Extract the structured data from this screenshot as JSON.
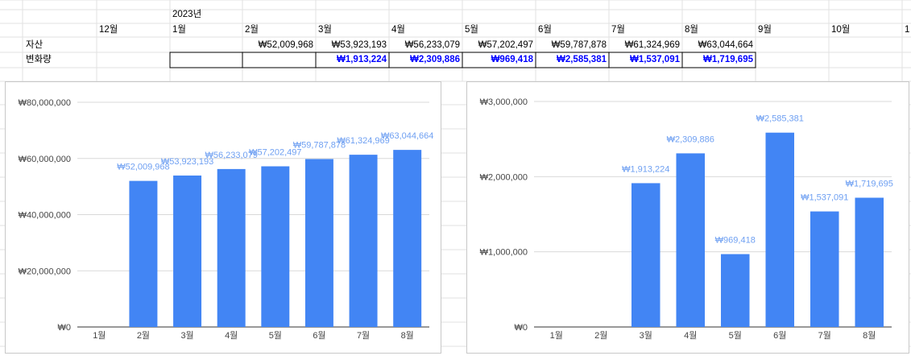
{
  "sheet": {
    "year_label": "2023년",
    "month_headers": [
      "12월",
      "1월",
      "2월",
      "3월",
      "4월",
      "5월",
      "6월",
      "7월",
      "8월",
      "9월",
      "10월",
      "1"
    ],
    "rows": [
      {
        "label": "자산",
        "values": [
          "",
          "",
          "₩52,009,968",
          "₩53,923,193",
          "₩56,233,079",
          "₩57,202,497",
          "₩59,787,878",
          "₩61,324,969",
          "₩63,044,664",
          "",
          "",
          ""
        ]
      },
      {
        "label": "변화량",
        "values": [
          "",
          "",
          "",
          "₩1,913,224",
          "₩2,309,886",
          "₩969,418",
          "₩2,585,381",
          "₩1,537,091",
          "₩1,719,695",
          "",
          "",
          ""
        ]
      }
    ]
  },
  "colors": {
    "bar": "#4285f4",
    "data_label": "#6fa0f2",
    "change_text": "#0000ff",
    "gridline": "#d9d9d9",
    "sheet_gridline": "#e2e2e2"
  },
  "chart_data": [
    {
      "type": "bar",
      "categories": [
        "1월",
        "2월",
        "3월",
        "4월",
        "5월",
        "6월",
        "7월",
        "8월"
      ],
      "series": [
        {
          "values": [
            0,
            52009968,
            53923193,
            56233079,
            57202497,
            59787878,
            61324969,
            63044664
          ]
        }
      ],
      "data_labels": [
        "",
        "₩52,009,968",
        "₩53,923,193",
        "₩56,233,079",
        "₩57,202,497",
        "₩59,787,878",
        "₩61,324,969",
        "₩63,044,664"
      ],
      "y_ticks": [
        "₩0",
        "₩20,000,000",
        "₩40,000,000",
        "₩60,000,000",
        "₩80,000,000"
      ],
      "ylim": [
        0,
        80000000
      ],
      "grid": true,
      "title": "",
      "xlabel": "",
      "ylabel": ""
    },
    {
      "type": "bar",
      "categories": [
        "1월",
        "2월",
        "3월",
        "4월",
        "5월",
        "6월",
        "7월",
        "8월"
      ],
      "series": [
        {
          "values": [
            0,
            0,
            1913224,
            2309886,
            969418,
            2585381,
            1537091,
            1719695
          ]
        }
      ],
      "data_labels": [
        "",
        "",
        "₩1,913,224",
        "₩2,309,886",
        "₩969,418",
        "₩2,585,381",
        "₩1,537,091",
        "₩1,719,695"
      ],
      "y_ticks": [
        "₩0",
        "₩1,000,000",
        "₩2,000,000",
        "₩3,000,000"
      ],
      "ylim": [
        0,
        3000000
      ],
      "grid": true,
      "title": "",
      "xlabel": "",
      "ylabel": ""
    }
  ]
}
